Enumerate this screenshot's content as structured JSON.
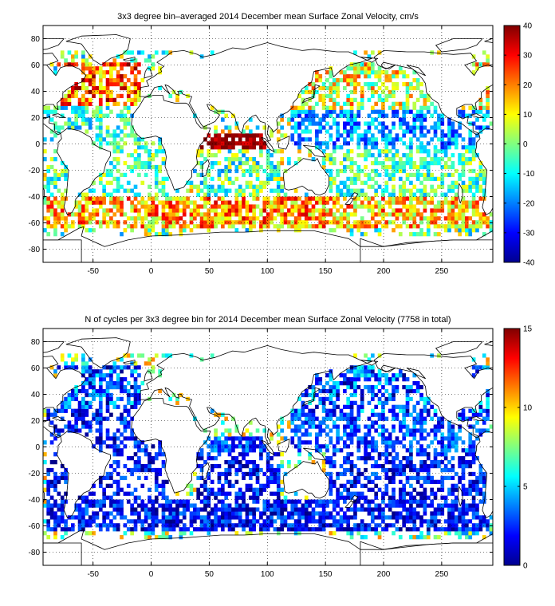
{
  "chart_data": [
    {
      "type": "heatmap",
      "title": "3x3 degree bin–averaged 2014 December mean Surface Zonal Velocity, cm/s",
      "xlim": [
        -93,
        294
      ],
      "ylim": [
        -90,
        90
      ],
      "xticks": [
        -50,
        0,
        50,
        100,
        150,
        200,
        250
      ],
      "yticks": [
        -80,
        -60,
        -40,
        -20,
        0,
        20,
        40,
        60,
        80
      ],
      "grid": true,
      "bin_size_deg": 3,
      "colorbar": {
        "min": -40,
        "max": 40,
        "ticks": [
          40,
          30,
          20,
          10,
          0,
          -10,
          -20,
          -30,
          -40
        ],
        "colormap": "jet"
      },
      "regions": [
        {
          "lon": [
            -80,
            -10
          ],
          "lat": [
            30,
            62
          ],
          "mean": 22,
          "spread": 18,
          "density": 0.65
        },
        {
          "lon": [
            -90,
            20
          ],
          "lat": [
            -5,
            30
          ],
          "mean": -6,
          "spread": 14,
          "density": 0.5
        },
        {
          "lon": [
            -90,
            20
          ],
          "lat": [
            -40,
            -5
          ],
          "mean": -3,
          "spread": 14,
          "density": 0.45
        },
        {
          "lon": [
            -90,
            20
          ],
          "lat": [
            -65,
            -40
          ],
          "mean": 16,
          "spread": 16,
          "density": 0.7
        },
        {
          "lon": [
            40,
            100
          ],
          "lat": [
            -5,
            8
          ],
          "mean": 38,
          "spread": 6,
          "density": 0.85
        },
        {
          "lon": [
            40,
            110
          ],
          "lat": [
            -40,
            -5
          ],
          "mean": -4,
          "spread": 16,
          "density": 0.55
        },
        {
          "lon": [
            20,
            150
          ],
          "lat": [
            -65,
            -40
          ],
          "mean": 18,
          "spread": 16,
          "density": 0.75
        },
        {
          "lon": [
            120,
            290
          ],
          "lat": [
            25,
            62
          ],
          "mean": 8,
          "spread": 18,
          "density": 0.6
        },
        {
          "lon": [
            120,
            290
          ],
          "lat": [
            -5,
            25
          ],
          "mean": -18,
          "spread": 12,
          "density": 0.6
        },
        {
          "lon": [
            150,
            290
          ],
          "lat": [
            -40,
            -5
          ],
          "mean": -4,
          "spread": 14,
          "density": 0.55
        },
        {
          "lon": [
            150,
            290
          ],
          "lat": [
            -65,
            -40
          ],
          "mean": 14,
          "spread": 16,
          "density": 0.65
        }
      ]
    },
    {
      "type": "heatmap",
      "title": "N of cycles per 3x3 degree bin for 2014 December mean Surface Zonal Velocity (7758 in total)",
      "xlim": [
        -93,
        294
      ],
      "ylim": [
        -90,
        90
      ],
      "xticks": [
        -50,
        0,
        50,
        100,
        150,
        200,
        250
      ],
      "yticks": [
        -80,
        -60,
        -40,
        -20,
        0,
        20,
        40,
        60,
        80
      ],
      "grid": true,
      "bin_size_deg": 3,
      "total_cycles": 7758,
      "colorbar": {
        "min": 0,
        "max": 15,
        "ticks": [
          15,
          10,
          5,
          0
        ],
        "colormap": "jet"
      },
      "regions": [
        {
          "lon": [
            -80,
            -10
          ],
          "lat": [
            30,
            62
          ],
          "mean": 3,
          "spread": 3,
          "density": 0.65
        },
        {
          "lon": [
            -90,
            20
          ],
          "lat": [
            -5,
            30
          ],
          "mean": 2,
          "spread": 2,
          "density": 0.5
        },
        {
          "lon": [
            -90,
            20
          ],
          "lat": [
            -40,
            -5
          ],
          "mean": 2,
          "spread": 2,
          "density": 0.45
        },
        {
          "lon": [
            -90,
            20
          ],
          "lat": [
            -65,
            -40
          ],
          "mean": 2,
          "spread": 2,
          "density": 0.7
        },
        {
          "lon": [
            40,
            100
          ],
          "lat": [
            -5,
            8
          ],
          "mean": 3,
          "spread": 2,
          "density": 0.85
        },
        {
          "lon": [
            40,
            110
          ],
          "lat": [
            -40,
            -5
          ],
          "mean": 2,
          "spread": 2,
          "density": 0.55
        },
        {
          "lon": [
            20,
            150
          ],
          "lat": [
            -65,
            -40
          ],
          "mean": 2,
          "spread": 2,
          "density": 0.75
        },
        {
          "lon": [
            120,
            290
          ],
          "lat": [
            25,
            62
          ],
          "mean": 3,
          "spread": 3,
          "density": 0.6
        },
        {
          "lon": [
            120,
            290
          ],
          "lat": [
            -5,
            25
          ],
          "mean": 3,
          "spread": 2,
          "density": 0.6
        },
        {
          "lon": [
            150,
            290
          ],
          "lat": [
            -40,
            -5
          ],
          "mean": 2,
          "spread": 2,
          "density": 0.55
        },
        {
          "lon": [
            150,
            290
          ],
          "lat": [
            -65,
            -40
          ],
          "mean": 2,
          "spread": 2,
          "density": 0.65
        }
      ]
    }
  ]
}
